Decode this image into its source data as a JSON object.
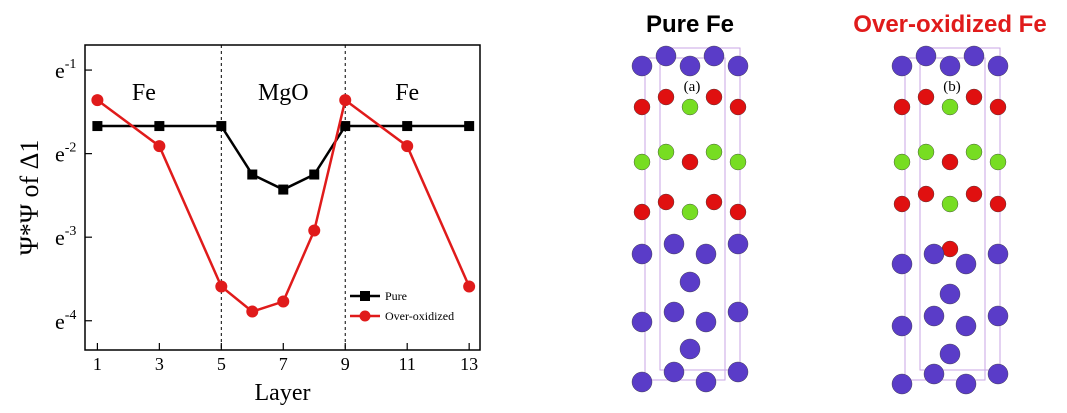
{
  "chart_data": {
    "type": "line",
    "xlabel": "Layer",
    "ylabel": "Ψ*Ψ of Δ1",
    "regions": [
      {
        "label": "Fe",
        "x": 2.5
      },
      {
        "label": "MgO",
        "x": 7
      },
      {
        "label": "Fe",
        "x": 11
      }
    ],
    "dividers": [
      5,
      9
    ],
    "x": [
      1,
      3,
      5,
      6,
      7,
      8,
      9,
      11,
      13
    ],
    "series": [
      {
        "name": "Pure",
        "color": "#000000",
        "marker": "square",
        "values": [
          -1.67,
          -1.67,
          -1.67,
          -2.25,
          -2.43,
          -2.25,
          -1.67,
          -1.67,
          -1.67
        ]
      },
      {
        "name": "Over-oxidized",
        "color": "#e01b1b",
        "marker": "circle",
        "values": [
          -1.36,
          -1.91,
          -3.59,
          -3.89,
          -3.77,
          -2.92,
          -1.36,
          -1.91,
          -3.59
        ]
      }
    ],
    "xlim": [
      0.6,
      13.35
    ],
    "xticks": [
      1,
      3,
      5,
      7,
      9,
      11,
      13
    ],
    "ylim": [
      -4.35,
      -0.7
    ],
    "yticks": [
      {
        "value": -1,
        "label": "e-1"
      },
      {
        "value": -2,
        "label": "e-2"
      },
      {
        "value": -3,
        "label": "e-3"
      },
      {
        "value": -4,
        "label": "e-4"
      }
    ],
    "legend": "lower right"
  },
  "structures": [
    {
      "title": "Pure Fe",
      "label": "(a)",
      "title_color": "#000000"
    },
    {
      "title": "Over-oxidized Fe",
      "label": "(b)",
      "title_color": "#e01b1b"
    }
  ]
}
